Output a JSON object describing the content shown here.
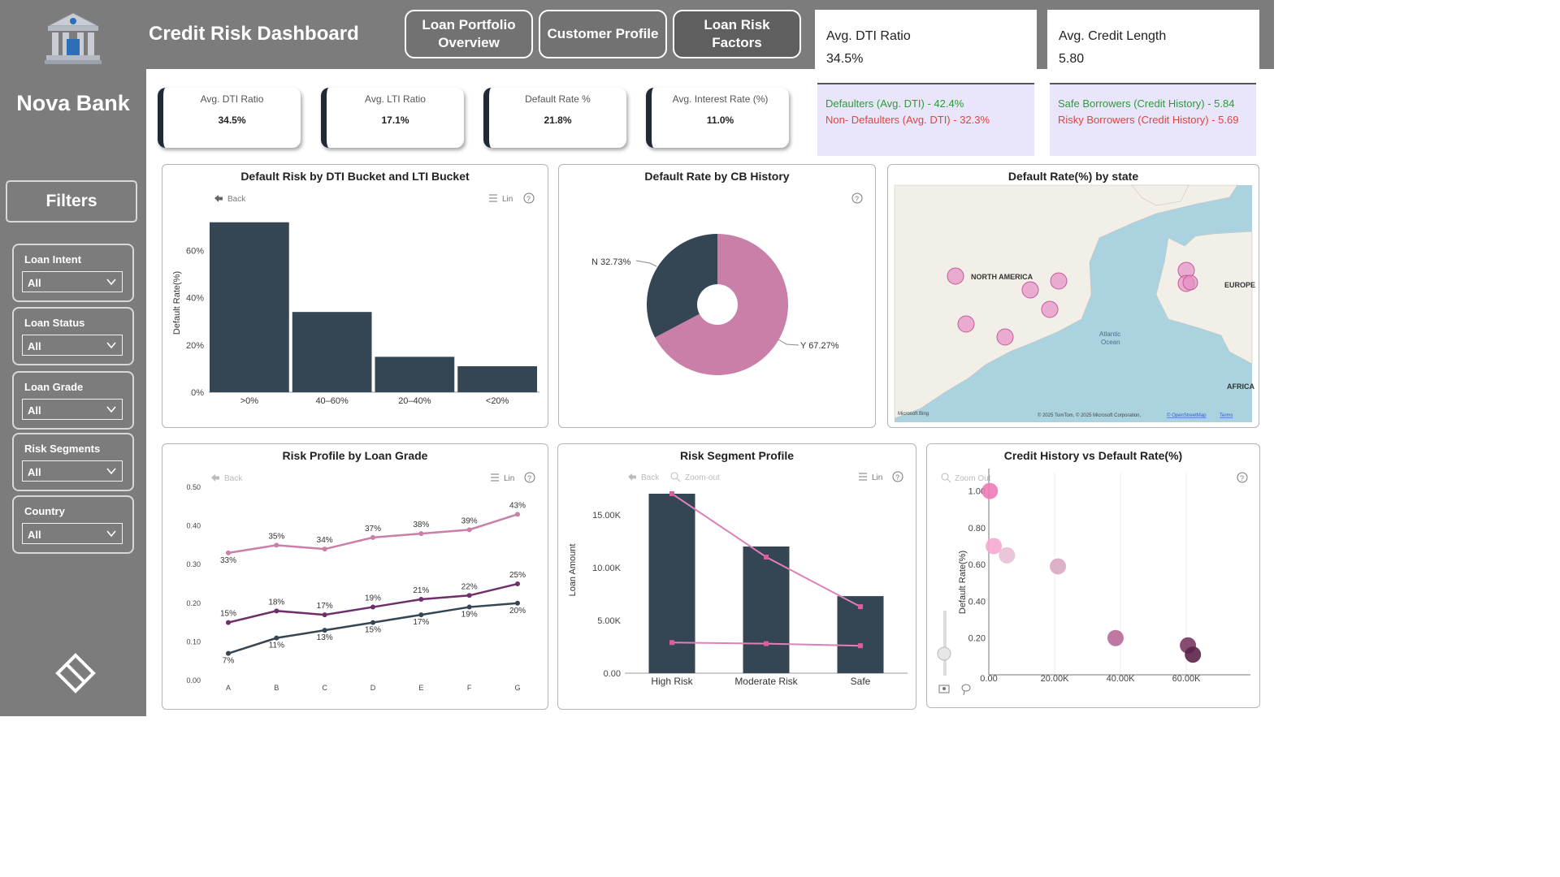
{
  "brand": {
    "name": "Nova Bank"
  },
  "header": {
    "title": "Credit Risk Dashboard",
    "nav": [
      {
        "label_line1": "Loan Portfolio",
        "label_line2": "Overview"
      },
      {
        "label_line1": "Customer Profile",
        "label_line2": ""
      },
      {
        "label_line1": "Loan Risk",
        "label_line2": "Factors"
      }
    ]
  },
  "top_cards": [
    {
      "title": "Avg. DTI Ratio",
      "value": "34.5%"
    },
    {
      "title": "Avg. Credit Length",
      "value": "5.80"
    }
  ],
  "comparisons": [
    {
      "good": "Defaulters (Avg. DTI) - 42.4%",
      "bad": "Non- Defaulters (Avg. DTI) - 32.3%"
    },
    {
      "good": "Safe Borrowers (Credit History) - 5.84",
      "bad": "Risky Borrowers (Credit History) - 5.69"
    }
  ],
  "kpis": [
    {
      "title": "Avg. DTI Ratio",
      "value": "34.5%"
    },
    {
      "title": "Avg. LTI Ratio",
      "value": "17.1%"
    },
    {
      "title": "Default Rate %",
      "value": "21.8%"
    },
    {
      "title": "Avg. Interest Rate (%)",
      "value": "11.0%"
    }
  ],
  "filters": {
    "title": "Filters",
    "items": [
      {
        "label": "Loan Intent",
        "value": "All"
      },
      {
        "label": "Loan Status",
        "value": "All"
      },
      {
        "label": "Loan Grade",
        "value": "All"
      },
      {
        "label": "Risk Segments",
        "value": "All"
      },
      {
        "label": "Country",
        "value": "All"
      }
    ]
  },
  "visual_controls": {
    "back": "Back",
    "lin": "Lin",
    "zoom_out": "Zoom-out",
    "zoom_out_alt": "Zoom Out"
  },
  "colors": {
    "dark": "#344654",
    "pink": "#c97fa7",
    "sidebar": "#7c7c7c",
    "light_pink": "#dba8c6",
    "purple": "#6e2f6a"
  },
  "chart_data": [
    {
      "type": "bar",
      "title": "Default Risk by DTI Bucket and LTI Bucket",
      "ylabel": "Default Rate(%)",
      "categories": [
        ">0%",
        "40–60%",
        "20–40%",
        "<20%"
      ],
      "values": [
        72,
        34,
        15,
        11
      ],
      "ylim": [
        0,
        75
      ],
      "yticks": [
        "0%",
        "20%",
        "40%",
        "60%"
      ]
    },
    {
      "type": "pie",
      "title": "Default Rate by CB History",
      "labels": [
        "N 32.73%",
        "Y 67.27%"
      ],
      "values": [
        32.73,
        67.27
      ]
    },
    {
      "type": "scatter",
      "title": "Default Rate(%) by state",
      "map_labels": [
        "NORTH AMERICA",
        "EUROPE",
        "AFRICA",
        "Atlantic",
        "Ocean"
      ],
      "attribution": "© 2025 TomTom, © 2025 Microsoft Corporation,",
      "attribution_link": "© OpenStreetMap",
      "attribution_terms": "Terms",
      "provider": "Microsoft Bing"
    },
    {
      "type": "line",
      "title": "Risk Profile by Loan Grade",
      "categories": [
        "A",
        "B",
        "C",
        "D",
        "E",
        "F",
        "G"
      ],
      "yticks": [
        "0.00",
        "0.10",
        "0.20",
        "0.30",
        "0.40",
        "0.50"
      ],
      "ylim": [
        0,
        0.5
      ],
      "series": [
        {
          "values": [
            0.33,
            0.35,
            0.34,
            0.37,
            0.38,
            0.39,
            0.43
          ],
          "labels": [
            "33%",
            "35%",
            "34%",
            "37%",
            "38%",
            "39%",
            "43%"
          ]
        },
        {
          "values": [
            0.15,
            0.18,
            0.17,
            0.19,
            0.21,
            0.22,
            0.25
          ],
          "labels": [
            "15%",
            "18%",
            "17%",
            "19%",
            "21%",
            "22%",
            "25%"
          ]
        },
        {
          "values": [
            0.07,
            0.11,
            0.13,
            0.15,
            0.17,
            0.19,
            0.2
          ],
          "labels": [
            "7%",
            "11%",
            "13%",
            "15%",
            "17%",
            "19%",
            "20%"
          ]
        }
      ]
    },
    {
      "type": "bar",
      "title": "Risk Segment Profile",
      "ylabel": "Loan Amount",
      "categories": [
        "High Risk",
        "Moderate Risk",
        "Safe"
      ],
      "values": [
        17000,
        12000,
        7300
      ],
      "line1": [
        17000,
        11000,
        6300
      ],
      "line2": [
        2900,
        2800,
        2600
      ],
      "ylim": [
        0,
        18000
      ],
      "yticks": [
        "0.00",
        "5.00K",
        "10.00K",
        "15.00K"
      ]
    },
    {
      "type": "scatter",
      "title": "Credit History vs Default Rate(%)",
      "ylabel": "Default Rate(%)",
      "xticks": [
        "0.00",
        "20.00K",
        "40.00K",
        "60.00K"
      ],
      "yticks": [
        "0.20",
        "0.40",
        "0.60",
        "0.80",
        "1.00"
      ],
      "xlim": [
        0,
        78000
      ],
      "ylim": [
        0,
        1.1
      ],
      "points": [
        {
          "x": 300,
          "y": 1.0
        },
        {
          "x": 1500,
          "y": 0.7
        },
        {
          "x": 5500,
          "y": 0.65
        },
        {
          "x": 21000,
          "y": 0.59
        },
        {
          "x": 38500,
          "y": 0.2
        },
        {
          "x": 60500,
          "y": 0.16
        },
        {
          "x": 62000,
          "y": 0.11
        }
      ]
    }
  ]
}
